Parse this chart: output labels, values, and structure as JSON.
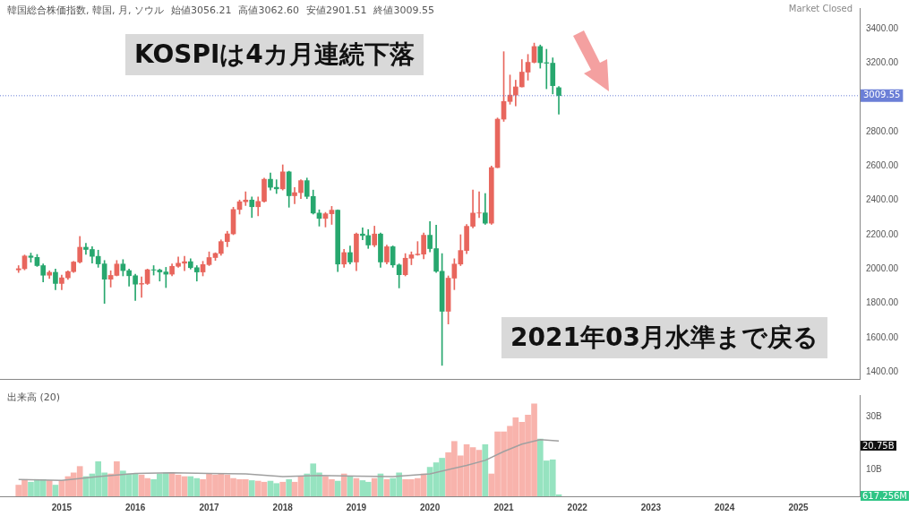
{
  "chart_data": [
    {
      "type": "candlestick",
      "title": "韓国総合株価指数, 韓国, 月, ソウル",
      "x": [
        "2014-06",
        "2014-07",
        "2014-08",
        "2014-09",
        "2014-10",
        "2014-11",
        "2014-12",
        "2015-01",
        "2015-02",
        "2015-03",
        "2015-04",
        "2015-05",
        "2015-06",
        "2015-07",
        "2015-08",
        "2015-09",
        "2015-10",
        "2015-11",
        "2015-12",
        "2016-01",
        "2016-02",
        "2016-03",
        "2016-04",
        "2016-05",
        "2016-06",
        "2016-07",
        "2016-08",
        "2016-09",
        "2016-10",
        "2016-11",
        "2016-12",
        "2017-01",
        "2017-02",
        "2017-03",
        "2017-04",
        "2017-05",
        "2017-06",
        "2017-07",
        "2017-08",
        "2017-09",
        "2017-10",
        "2017-11",
        "2017-12",
        "2018-01",
        "2018-02",
        "2018-03",
        "2018-04",
        "2018-05",
        "2018-06",
        "2018-07",
        "2018-08",
        "2018-09",
        "2018-10",
        "2018-11",
        "2018-12",
        "2019-01",
        "2019-02",
        "2019-03",
        "2019-04",
        "2019-05",
        "2019-06",
        "2019-07",
        "2019-08",
        "2019-09",
        "2019-10",
        "2019-11",
        "2019-12",
        "2020-01",
        "2020-02",
        "2020-03",
        "2020-04",
        "2020-05",
        "2020-06",
        "2020-07",
        "2020-08",
        "2020-09",
        "2020-10",
        "2020-11",
        "2020-12",
        "2021-01",
        "2021-02",
        "2021-03",
        "2021-04",
        "2021-05",
        "2021-06",
        "2021-07",
        "2021-08",
        "2021-09",
        "2021-10"
      ],
      "ohlc": [
        [
          1995,
          2020,
          1980,
          2002
        ],
        [
          2002,
          2082,
          1995,
          2076
        ],
        [
          2076,
          2093,
          2040,
          2068
        ],
        [
          2068,
          2085,
          2015,
          2020
        ],
        [
          2020,
          2030,
          1925,
          1964
        ],
        [
          1964,
          1990,
          1945,
          1981
        ],
        [
          1981,
          2000,
          1880,
          1916
        ],
        [
          1916,
          1965,
          1880,
          1949
        ],
        [
          1949,
          1990,
          1940,
          1985
        ],
        [
          1985,
          2045,
          1980,
          2041
        ],
        [
          2041,
          2190,
          2035,
          2127
        ],
        [
          2127,
          2150,
          2085,
          2114
        ],
        [
          2114,
          2130,
          2035,
          2074
        ],
        [
          2074,
          2110,
          2010,
          2030
        ],
        [
          2030,
          2050,
          1800,
          1941
        ],
        [
          1941,
          1990,
          1895,
          1963
        ],
        [
          1963,
          2050,
          1960,
          2029
        ],
        [
          2029,
          2055,
          1960,
          1991
        ],
        [
          1991,
          2000,
          1900,
          1961
        ],
        [
          1961,
          1970,
          1817,
          1912
        ],
        [
          1912,
          1955,
          1835,
          1916
        ],
        [
          1916,
          2000,
          1910,
          1996
        ],
        [
          1996,
          2020,
          1965,
          1994
        ],
        [
          1994,
          2000,
          1930,
          1983
        ],
        [
          1983,
          2010,
          1892,
          1970
        ],
        [
          1970,
          2030,
          1960,
          2016
        ],
        [
          2016,
          2070,
          2010,
          2034
        ],
        [
          2034,
          2075,
          1990,
          2043
        ],
        [
          2043,
          2060,
          2000,
          2008
        ],
        [
          2008,
          2020,
          1930,
          1983
        ],
        [
          1983,
          2045,
          1960,
          2026
        ],
        [
          2026,
          2100,
          2020,
          2067
        ],
        [
          2067,
          2095,
          2050,
          2091
        ],
        [
          2091,
          2170,
          2080,
          2160
        ],
        [
          2160,
          2220,
          2130,
          2205
        ],
        [
          2205,
          2360,
          2200,
          2347
        ],
        [
          2347,
          2402,
          2320,
          2392
        ],
        [
          2392,
          2450,
          2370,
          2402
        ],
        [
          2402,
          2420,
          2300,
          2363
        ],
        [
          2363,
          2420,
          2310,
          2394
        ],
        [
          2394,
          2530,
          2390,
          2523
        ],
        [
          2523,
          2560,
          2460,
          2476
        ],
        [
          2476,
          2520,
          2440,
          2467
        ],
        [
          2467,
          2607,
          2460,
          2566
        ],
        [
          2566,
          2570,
          2360,
          2427
        ],
        [
          2427,
          2475,
          2380,
          2445
        ],
        [
          2445,
          2520,
          2410,
          2515
        ],
        [
          2515,
          2530,
          2410,
          2423
        ],
        [
          2423,
          2460,
          2320,
          2326
        ],
        [
          2326,
          2345,
          2250,
          2295
        ],
        [
          2295,
          2330,
          2245,
          2322
        ],
        [
          2322,
          2365,
          2260,
          2343
        ],
        [
          2343,
          2345,
          1985,
          2029
        ],
        [
          2029,
          2115,
          2010,
          2096
        ],
        [
          2096,
          2135,
          2030,
          2041
        ],
        [
          2041,
          2210,
          1990,
          2204
        ],
        [
          2204,
          2240,
          2170,
          2195
        ],
        [
          2195,
          2230,
          2120,
          2140
        ],
        [
          2140,
          2250,
          2130,
          2204
        ],
        [
          2204,
          2210,
          2010,
          2041
        ],
        [
          2041,
          2140,
          2030,
          2130
        ],
        [
          2130,
          2135,
          2010,
          2024
        ],
        [
          2024,
          2030,
          1890,
          1967
        ],
        [
          1967,
          2090,
          1960,
          2063
        ],
        [
          2063,
          2100,
          2025,
          2083
        ],
        [
          2083,
          2160,
          2080,
          2087
        ],
        [
          2087,
          2210,
          2060,
          2197
        ],
        [
          2197,
          2277,
          2100,
          2119
        ],
        [
          2119,
          2256,
          1980,
          1987
        ],
        [
          1987,
          2090,
          1439,
          1754
        ],
        [
          1754,
          1960,
          1680,
          1947
        ],
        [
          1947,
          2060,
          1880,
          2029
        ],
        [
          2029,
          2200,
          2020,
          2108
        ],
        [
          2108,
          2260,
          2090,
          2249
        ],
        [
          2249,
          2460,
          2240,
          2326
        ],
        [
          2326,
          2450,
          2300,
          2327
        ],
        [
          2327,
          2440,
          2260,
          2267
        ],
        [
          2267,
          2600,
          2260,
          2591
        ],
        [
          2591,
          2880,
          2590,
          2873
        ],
        [
          2873,
          3266,
          2860,
          2976
        ],
        [
          2976,
          3130,
          2960,
          3013
        ],
        [
          3013,
          3100,
          2950,
          3061
        ],
        [
          3061,
          3220,
          3060,
          3147
        ],
        [
          3147,
          3250,
          3100,
          3204
        ],
        [
          3204,
          3316,
          3200,
          3296
        ],
        [
          3296,
          3305,
          3170,
          3202
        ],
        [
          3202,
          3280,
          3050,
          3199
        ],
        [
          3199,
          3230,
          3020,
          3068
        ],
        [
          3056.21,
          3062.6,
          2901.51,
          3009.55
        ]
      ],
      "colors": [
        "#e8665d",
        "#e8665d",
        "#27a76e",
        "#27a76e",
        "#27a76e",
        "#e8665d",
        "#27a76e",
        "#e8665d",
        "#e8665d",
        "#e8665d",
        "#e8665d",
        "#27a76e",
        "#27a76e",
        "#27a76e",
        "#27a76e",
        "#e8665d",
        "#e8665d",
        "#27a76e",
        "#27a76e",
        "#27a76e",
        "#e8665d",
        "#e8665d",
        "#27a76e",
        "#27a76e",
        "#27a76e",
        "#e8665d",
        "#e8665d",
        "#e8665d",
        "#27a76e",
        "#27a76e",
        "#e8665d",
        "#e8665d",
        "#e8665d",
        "#e8665d",
        "#e8665d",
        "#e8665d",
        "#e8665d",
        "#e8665d",
        "#27a76e",
        "#e8665d",
        "#e8665d",
        "#27a76e",
        "#27a76e",
        "#e8665d",
        "#27a76e",
        "#e8665d",
        "#e8665d",
        "#27a76e",
        "#27a76e",
        "#27a76e",
        "#e8665d",
        "#e8665d",
        "#27a76e",
        "#e8665d",
        "#27a76e",
        "#e8665d",
        "#27a76e",
        "#27a76e",
        "#e8665d",
        "#27a76e",
        "#e8665d",
        "#27a76e",
        "#27a76e",
        "#e8665d",
        "#e8665d",
        "#e8665d",
        "#e8665d",
        "#27a76e",
        "#27a76e",
        "#27a76e",
        "#e8665d",
        "#e8665d",
        "#e8665d",
        "#e8665d",
        "#e8665d",
        "#e8665d",
        "#27a76e",
        "#e8665d",
        "#e8665d",
        "#e8665d",
        "#e8665d",
        "#e8665d",
        "#e8665d",
        "#e8665d",
        "#e8665d",
        "#27a76e",
        "#27a76e",
        "#27a76e",
        "#27a76e"
      ],
      "xlim": [
        "2014-03",
        "2025-11"
      ],
      "ylim": [
        1360,
        3520
      ],
      "yticks": [
        {
          "value": 1400,
          "label": "1400.00"
        },
        {
          "value": 1600,
          "label": "1600.00"
        },
        {
          "value": 1800,
          "label": "1800.00"
        },
        {
          "value": 2000,
          "label": "2000.00"
        },
        {
          "value": 2200,
          "label": "2200.00"
        },
        {
          "value": 2400,
          "label": "2400.00"
        },
        {
          "value": 2600,
          "label": "2600.00"
        },
        {
          "value": 2800,
          "label": "2800.00"
        },
        {
          "value": 3200,
          "label": "3200.00"
        },
        {
          "value": 3400,
          "label": "3400.00"
        }
      ],
      "tick_labels": "y",
      "ref_lines": [
        {
          "axis": "y",
          "value": 3009.55,
          "label": "3009.55",
          "color": "#6b7fd7",
          "line_style": "dotted"
        }
      ],
      "annotations": [
        "始値3056.21",
        "高値3062.60",
        "安値2901.51",
        "終値3009.55",
        "Market Closed",
        "KOSPIは4カ月連続下落",
        "2021年03月水準まで戻る"
      ]
    },
    {
      "type": "bar",
      "title": "出来高 (20)",
      "x": [
        "2014-06",
        "2014-07",
        "2014-08",
        "2014-09",
        "2014-10",
        "2014-11",
        "2014-12",
        "2015-01",
        "2015-02",
        "2015-03",
        "2015-04",
        "2015-05",
        "2015-06",
        "2015-07",
        "2015-08",
        "2015-09",
        "2015-10",
        "2015-11",
        "2015-12",
        "2016-01",
        "2016-02",
        "2016-03",
        "2016-04",
        "2016-05",
        "2016-06",
        "2016-07",
        "2016-08",
        "2016-09",
        "2016-10",
        "2016-11",
        "2016-12",
        "2017-01",
        "2017-02",
        "2017-03",
        "2017-04",
        "2017-05",
        "2017-06",
        "2017-07",
        "2017-08",
        "2017-09",
        "2017-10",
        "2017-11",
        "2017-12",
        "2018-01",
        "2018-02",
        "2018-03",
        "2018-04",
        "2018-05",
        "2018-06",
        "2018-07",
        "2018-08",
        "2018-09",
        "2018-10",
        "2018-11",
        "2018-12",
        "2019-01",
        "2019-02",
        "2019-03",
        "2019-04",
        "2019-05",
        "2019-06",
        "2019-07",
        "2019-08",
        "2019-09",
        "2019-10",
        "2019-11",
        "2019-12",
        "2020-01",
        "2020-02",
        "2020-03",
        "2020-04",
        "2020-05",
        "2020-06",
        "2020-07",
        "2020-08",
        "2020-09",
        "2020-10",
        "2020-11",
        "2020-12",
        "2021-01",
        "2021-02",
        "2021-03",
        "2021-04",
        "2021-05",
        "2021-06",
        "2021-07",
        "2021-08",
        "2021-09",
        "2021-10"
      ],
      "series": [
        {
          "type": "bar",
          "values": [
            4.2,
            6.3,
            5.3,
            6.3,
            6.3,
            5.9,
            4.2,
            5.9,
            7.4,
            8.8,
            11.2,
            7.4,
            8.4,
            13,
            8.8,
            8.4,
            13,
            9.5,
            8.4,
            8.4,
            8,
            6.7,
            6.3,
            8.4,
            8.8,
            8.8,
            8,
            7.4,
            7.4,
            6.7,
            6.3,
            8.4,
            8,
            8.4,
            8,
            6.7,
            6.3,
            6.3,
            5.9,
            5.7,
            5.3,
            5.7,
            4.8,
            5.3,
            6.3,
            5.3,
            7.4,
            8.4,
            12.2,
            8.8,
            7.4,
            6.3,
            5.7,
            8.4,
            7.4,
            6.7,
            5.9,
            5.3,
            6.7,
            8.4,
            6.3,
            6.7,
            8.8,
            6.3,
            6.3,
            6.7,
            8.4,
            10.9,
            12.6,
            14.3,
            16.4,
            20.6,
            15.2,
            19.4,
            18.3,
            17.3,
            19.4,
            8.4,
            24.2,
            24.2,
            26.3,
            29.5,
            27.8,
            30.5,
            34.7,
            21.5,
            13.3,
            13.7,
            0.6
          ],
          "colors": [
            "#f8b3ac",
            "#f8b3ac",
            "#96e3c0",
            "#96e3c0",
            "#96e3c0",
            "#f8b3ac",
            "#96e3c0",
            "#f8b3ac",
            "#f8b3ac",
            "#f8b3ac",
            "#f8b3ac",
            "#96e3c0",
            "#96e3c0",
            "#96e3c0",
            "#96e3c0",
            "#f8b3ac",
            "#f8b3ac",
            "#96e3c0",
            "#96e3c0",
            "#96e3c0",
            "#f8b3ac",
            "#f8b3ac",
            "#96e3c0",
            "#96e3c0",
            "#96e3c0",
            "#f8b3ac",
            "#f8b3ac",
            "#f8b3ac",
            "#96e3c0",
            "#96e3c0",
            "#f8b3ac",
            "#f8b3ac",
            "#f8b3ac",
            "#f8b3ac",
            "#f8b3ac",
            "#f8b3ac",
            "#f8b3ac",
            "#f8b3ac",
            "#96e3c0",
            "#f8b3ac",
            "#f8b3ac",
            "#96e3c0",
            "#96e3c0",
            "#f8b3ac",
            "#96e3c0",
            "#f8b3ac",
            "#f8b3ac",
            "#96e3c0",
            "#96e3c0",
            "#96e3c0",
            "#f8b3ac",
            "#f8b3ac",
            "#96e3c0",
            "#f8b3ac",
            "#96e3c0",
            "#f8b3ac",
            "#96e3c0",
            "#96e3c0",
            "#f8b3ac",
            "#96e3c0",
            "#f8b3ac",
            "#96e3c0",
            "#96e3c0",
            "#f8b3ac",
            "#f8b3ac",
            "#f8b3ac",
            "#f8b3ac",
            "#96e3c0",
            "#96e3c0",
            "#96e3c0",
            "#f8b3ac",
            "#f8b3ac",
            "#f8b3ac",
            "#f8b3ac",
            "#f8b3ac",
            "#f8b3ac",
            "#96e3c0",
            "#f8b3ac",
            "#f8b3ac",
            "#f8b3ac",
            "#f8b3ac",
            "#f8b3ac",
            "#f8b3ac",
            "#f8b3ac",
            "#f8b3ac",
            "#96e3c0",
            "#96e3c0",
            "#96e3c0",
            "#96e3c0"
          ]
        },
        {
          "type": "line",
          "color": "#a0a0a0",
          "x": [
            "2014-06",
            "2015-01",
            "2015-07",
            "2016-01",
            "2016-07",
            "2017-01",
            "2017-07",
            "2018-01",
            "2018-07",
            "2019-01",
            "2019-07",
            "2020-01",
            "2020-07",
            "2020-10",
            "2021-01",
            "2021-04",
            "2021-07",
            "2021-10"
          ],
          "values": [
            6.3,
            6.0,
            7.4,
            8.6,
            8.8,
            8.6,
            8.4,
            7.4,
            7.8,
            7.6,
            7.4,
            8.4,
            11.6,
            13.5,
            16.8,
            19.6,
            21.3,
            20.8
          ]
        }
      ],
      "xlim": [
        "2014-03",
        "2025-11"
      ],
      "ylim": [
        0,
        38
      ],
      "yticks": [
        {
          "value": 10,
          "label": "10B"
        },
        {
          "value": 30,
          "label": "30B"
        }
      ],
      "xticks": [
        "2015",
        "2016",
        "2017",
        "2018",
        "2019",
        "2020",
        "2021",
        "2022",
        "2023",
        "2024",
        "2025"
      ],
      "annotations": [
        "20.75B",
        "617.256M"
      ]
    }
  ]
}
